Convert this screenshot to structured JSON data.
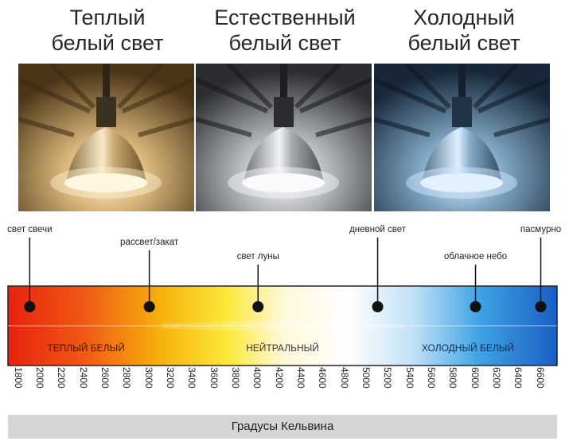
{
  "titles": {
    "warm": [
      "Теплый",
      "белый свет"
    ],
    "natural": [
      "Естественный",
      "белый свет"
    ],
    "cold": [
      "Холодный",
      "белый свет"
    ]
  },
  "events": [
    {
      "label": "свет свечи",
      "kelvin": 1900
    },
    {
      "label": "рассвет/закат",
      "kelvin": 3000
    },
    {
      "label": "свет луны",
      "kelvin": 4000
    },
    {
      "label": "дневной свет",
      "kelvin": 5100
    },
    {
      "label": "облачное небо",
      "kelvin": 6000
    },
    {
      "label": "пасмурно",
      "kelvin": 6600
    }
  ],
  "bands": {
    "warm": "ТЕПЛЫЙ БЕЛЫЙ",
    "neutral": "НЕЙТРАЛЬНЫЙ",
    "cold": "ХОЛОДНЫЙ БЕЛЫЙ"
  },
  "scale": {
    "min": 1700,
    "max": 6750,
    "ticks": [
      "1800",
      "2000",
      "2200",
      "2400",
      "2600",
      "2800",
      "3000",
      "3200",
      "3400",
      "3600",
      "3800",
      "4000",
      "4200",
      "4400",
      "4600",
      "4800",
      "5000",
      "5200",
      "5400",
      "5600",
      "5800",
      "6000",
      "6200",
      "6400",
      "6600"
    ]
  },
  "footer": "Градусы Кельвина",
  "colors": {
    "warm_light": "#f4d7a0",
    "natural_light": "#f2f4f7",
    "cold_light": "#cbe6ff"
  }
}
